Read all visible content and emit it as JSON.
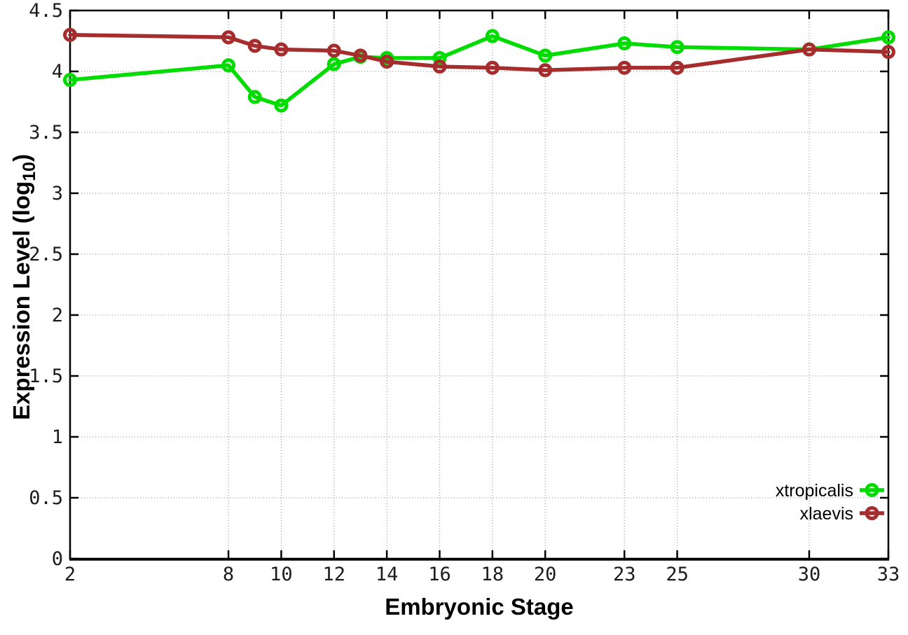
{
  "chart_data": {
    "type": "line",
    "title": "",
    "xlabel": "Embryonic Stage",
    "ylabel": {
      "text": "Expression Level (log",
      "sub": "10",
      "close": ")"
    },
    "xlim": [
      2,
      33
    ],
    "ylim": [
      0,
      4.5
    ],
    "x_ticks": [
      2,
      8,
      10,
      12,
      14,
      16,
      18,
      20,
      23,
      25,
      30,
      33
    ],
    "y_ticks": [
      0,
      0.5,
      1,
      1.5,
      2,
      2.5,
      3,
      3.5,
      4,
      4.5
    ],
    "grid": "dotted",
    "legend_position": "bottom-right",
    "x": [
      2,
      8,
      9,
      10,
      12,
      13,
      14,
      16,
      18,
      20,
      23,
      25,
      30,
      33
    ],
    "series": [
      {
        "name": "xtropicalis",
        "color": "#00dc00",
        "marker": "open-circle",
        "values": [
          3.93,
          4.05,
          3.79,
          3.72,
          4.06,
          4.12,
          4.11,
          4.11,
          4.29,
          4.13,
          4.23,
          4.2,
          4.18,
          4.28
        ]
      },
      {
        "name": "xlaevis",
        "color": "#a52d2d",
        "marker": "open-circle",
        "values": [
          4.3,
          4.28,
          4.21,
          4.18,
          4.17,
          4.13,
          4.08,
          4.04,
          4.03,
          4.01,
          4.03,
          4.03,
          4.18,
          4.16
        ]
      }
    ],
    "colors": {
      "background": "#ffffff",
      "axis": "#000000",
      "grid": "#9a9a9a",
      "tick_text": "#1c1c1c"
    }
  }
}
